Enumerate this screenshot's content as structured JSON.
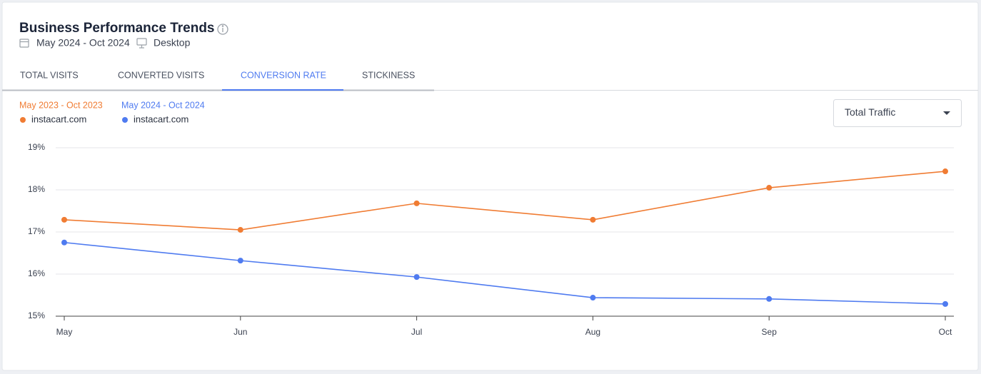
{
  "header": {
    "title": "Business Performance Trends",
    "date_range": "May 2024 - Oct 2024",
    "device": "Desktop"
  },
  "tabs": [
    "TOTAL VISITS",
    "CONVERTED VISITS",
    "CONVERSION RATE",
    "STICKINESS"
  ],
  "active_tab": 2,
  "filter": {
    "label": "Total Traffic"
  },
  "chart_data": {
    "type": "line",
    "categories": [
      "May",
      "Jun",
      "Jul",
      "Aug",
      "Sep",
      "Oct"
    ],
    "series": [
      {
        "name": "instacart.com",
        "period": "May 2023 - Oct 2023",
        "color": "#f07c33",
        "values": [
          17.29,
          17.05,
          17.68,
          17.29,
          18.05,
          18.44
        ]
      },
      {
        "name": "instacart.com",
        "period": "May 2024 - Oct 2024",
        "color": "#4f7bf0",
        "values": [
          16.75,
          16.32,
          15.93,
          15.44,
          15.41,
          15.29
        ]
      }
    ],
    "ylim": [
      15,
      19
    ],
    "yticks": [
      {
        "value": 15,
        "label": "15%"
      },
      {
        "value": 16,
        "label": "16%"
      },
      {
        "value": 17,
        "label": "17%"
      },
      {
        "value": 18,
        "label": "18%"
      },
      {
        "value": 19,
        "label": "19%"
      }
    ],
    "grid": true
  }
}
